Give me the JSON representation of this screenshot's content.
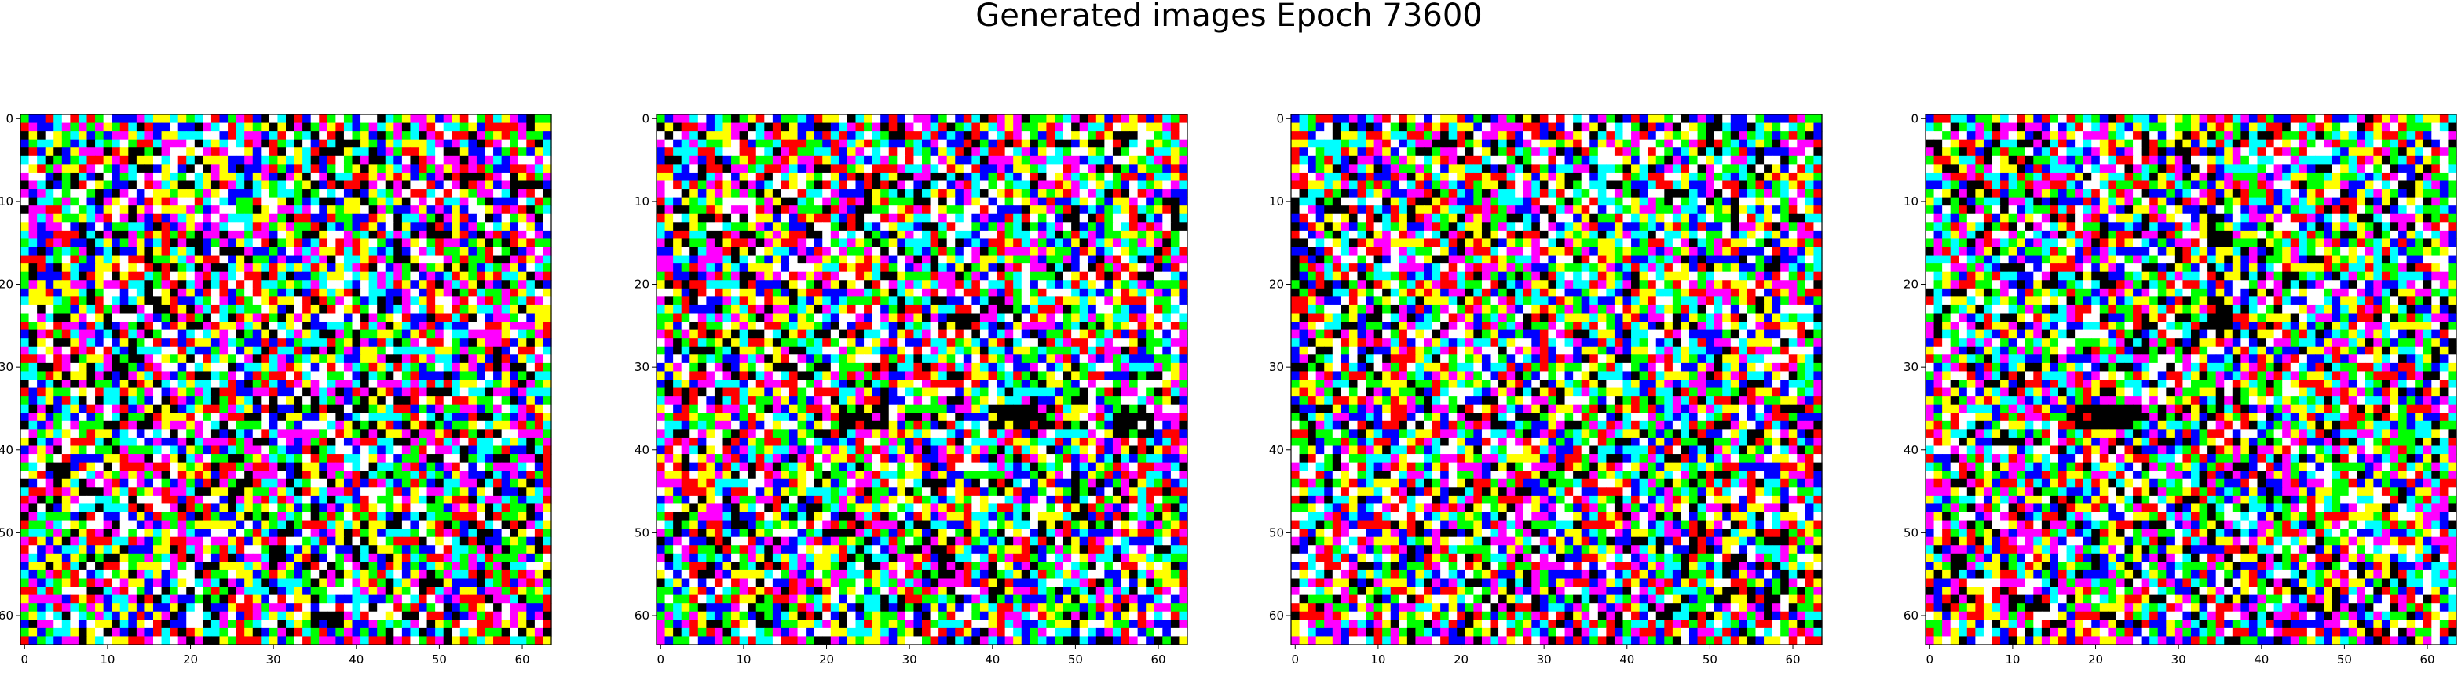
{
  "figure": {
    "title": "Generated images Epoch 73600"
  },
  "chart_data": [
    {
      "type": "heatmap",
      "title": "",
      "xlabel": "",
      "ylabel": "",
      "grid_size": [
        64,
        64
      ],
      "xlim": [
        0,
        63
      ],
      "ylim": [
        63,
        0
      ],
      "xticks": [
        "0",
        "10",
        "20",
        "30",
        "40",
        "50",
        "60"
      ],
      "yticks": [
        "0",
        "10",
        "20",
        "30",
        "40",
        "50",
        "60"
      ],
      "seed": 11,
      "palette": [
        "#ff0000",
        "#00ff00",
        "#0000ff",
        "#ffff00",
        "#ff00ff",
        "#00ffff",
        "#ffffff",
        "#000000"
      ],
      "dark_clusters": []
    },
    {
      "type": "heatmap",
      "title": "",
      "xlabel": "",
      "ylabel": "",
      "grid_size": [
        64,
        64
      ],
      "xlim": [
        0,
        63
      ],
      "ylim": [
        63,
        0
      ],
      "xticks": [
        "0",
        "10",
        "20",
        "30",
        "40",
        "50",
        "60"
      ],
      "yticks": [
        "0",
        "10",
        "20",
        "30",
        "40",
        "50",
        "60"
      ],
      "seed": 23,
      "palette": [
        "#ff0000",
        "#00ff00",
        "#0000ff",
        "#ffff00",
        "#ff00ff",
        "#00ffff",
        "#ffffff",
        "#000000"
      ],
      "dark_clusters": [
        [
          22,
          35,
          6,
          3
        ],
        [
          40,
          35,
          7,
          3
        ],
        [
          55,
          36,
          5,
          3
        ]
      ]
    },
    {
      "type": "heatmap",
      "title": "",
      "xlabel": "",
      "ylabel": "",
      "grid_size": [
        64,
        64
      ],
      "xlim": [
        0,
        63
      ],
      "ylim": [
        63,
        0
      ],
      "xticks": [
        "0",
        "10",
        "20",
        "30",
        "40",
        "50",
        "60"
      ],
      "yticks": [
        "0",
        "10",
        "20",
        "30",
        "40",
        "50",
        "60"
      ],
      "seed": 37,
      "palette": [
        "#ff0000",
        "#00ff00",
        "#0000ff",
        "#ffff00",
        "#ff00ff",
        "#00ffff",
        "#ffffff",
        "#000000"
      ],
      "dark_clusters": []
    },
    {
      "type": "heatmap",
      "title": "",
      "xlabel": "",
      "ylabel": "",
      "grid_size": [
        64,
        64
      ],
      "xlim": [
        0,
        63
      ],
      "ylim": [
        63,
        0
      ],
      "xticks": [
        "0",
        "10",
        "20",
        "30",
        "40",
        "50",
        "60"
      ],
      "yticks": [
        "0",
        "10",
        "20",
        "30",
        "40",
        "50",
        "60"
      ],
      "seed": 53,
      "palette": [
        "#ff0000",
        "#00ff00",
        "#0000ff",
        "#ffff00",
        "#ff00ff",
        "#00ffff",
        "#ffffff",
        "#000000"
      ],
      "dark_clusters": [
        [
          18,
          35,
          8,
          3
        ],
        [
          34,
          12,
          3,
          4
        ],
        [
          34,
          22,
          3,
          5
        ]
      ]
    }
  ]
}
